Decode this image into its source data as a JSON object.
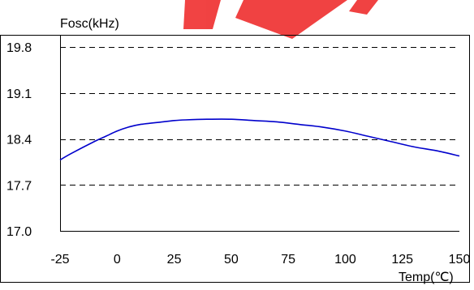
{
  "chart_data": {
    "type": "line",
    "title": "",
    "ylabel": "Fosc(kHz)",
    "xlabel": "Temp(℃)",
    "xlim": [
      -25,
      150
    ],
    "ylim": [
      17.0,
      20.2
    ],
    "x_ticks": [
      -25,
      0,
      25,
      50,
      75,
      100,
      125,
      150
    ],
    "x_tick_labels": [
      "-25",
      "0",
      "25",
      "50",
      "75",
      "100",
      "125",
      "150"
    ],
    "y_ticks": [
      17.0,
      17.7,
      18.4,
      19.1,
      19.8
    ],
    "y_tick_labels": [
      "17.0",
      "17.7",
      "18.4",
      "19.1",
      "19.8"
    ],
    "grid": "horizontal-dashed",
    "legend": "none",
    "series": [
      {
        "color": "#0000cc",
        "x": [
          -25,
          -20,
          -10,
          -5,
          0,
          5,
          10,
          20,
          25,
          30,
          40,
          50,
          60,
          70,
          80,
          90,
          100,
          110,
          120,
          130,
          140,
          150
        ],
        "y": [
          18.08,
          18.18,
          18.36,
          18.44,
          18.52,
          18.58,
          18.62,
          18.66,
          18.68,
          18.69,
          18.7,
          18.7,
          18.68,
          18.66,
          18.62,
          18.58,
          18.52,
          18.44,
          18.36,
          18.28,
          18.22,
          18.14
        ]
      }
    ]
  }
}
